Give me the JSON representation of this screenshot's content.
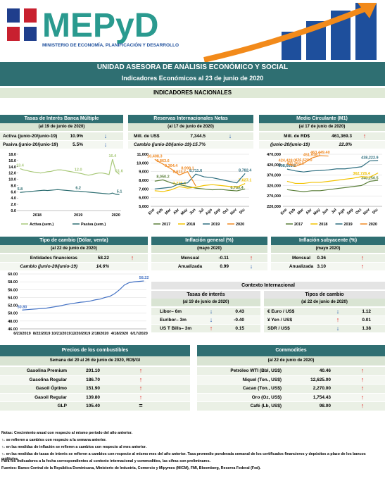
{
  "header": {
    "logo": "MEPyD",
    "ministry": "MINISTERIO DE ECONOMÍA, PLANIFICACIÓN Y DESARROLLO"
  },
  "banner": {
    "title": "UNIDAD ASESORA DE ANÁLISIS ECONÓMICO Y SOCIAL",
    "subtitle": "Indicadores Económicos al  23 de junio de 2020"
  },
  "section_title": "INDICADORES NACIONALES",
  "international_title": "Contexto Internacional",
  "panels": [
    {
      "title": "Tasas de Interés Banca Múltiple",
      "date": "(al 19 de junio de 2020)",
      "rows": [
        [
          "Activa (junio-20/junio-19)",
          "10.9%",
          "↓"
        ],
        [
          "Pasiva (junio-20/junio-19)",
          "5.5%",
          "↓"
        ]
      ]
    },
    {
      "title": "Reservas Internacionales Netas",
      "date": "(al 17 de junio de 2020)",
      "rows": [
        [
          "Mill. de US$",
          "7,344.5",
          "↓"
        ],
        [
          "Cambio (junio-20/junio-19)",
          "-15.7%"
        ]
      ]
    },
    {
      "title": "Medio Circulante (M1)",
      "date": "(al 17 de junio de 2020)",
      "rows": [
        [
          "Mill. de RD$",
          "461,369.3",
          "↑"
        ],
        [
          "(junio-20/junio-19)",
          "22.8%"
        ]
      ]
    },
    {
      "title": "Tipo de cambio (Dólar, venta)",
      "date": "(al 22 de junio de 2020)",
      "rows": [
        [
          "Entidades financieras",
          "58.22",
          "↑"
        ],
        [
          "Cambio (junio-20/junio-19)",
          "14.6%"
        ]
      ]
    },
    {
      "title": "Inflación general (%)",
      "date": "(mayo 2020)",
      "rows": [
        [
          "Mensual",
          "-0.11",
          "↑"
        ],
        [
          "Anualizada",
          "0.99",
          "↓"
        ]
      ]
    },
    {
      "title": "Inflación subyacente (%)",
      "date": "(mayo 2020)",
      "rows": [
        [
          "Mensual",
          "0.36",
          "↑"
        ],
        [
          "Anualizada",
          "3.10",
          "↑"
        ]
      ]
    },
    {
      "title": "Tasas de interés",
      "date": "(al 19 de junio de 2020)",
      "rows": [
        [
          "Libor– 6m",
          "↓",
          "0.43"
        ],
        [
          "Euribor– 3m",
          "↓",
          "-0.40"
        ],
        [
          "US T Bills– 3m",
          "↑",
          "0.15"
        ]
      ]
    },
    {
      "title": "Tipos de cambio",
      "date": "(al 22 de junio de 2020)",
      "rows": [
        [
          "€ Euro / US$",
          "↓",
          "1.12"
        ],
        [
          "¥ Yen / US$",
          "↑",
          "0.01"
        ],
        [
          "SDR / US$",
          "↓",
          "1.38"
        ]
      ]
    },
    {
      "title": "Precios de los combustibles",
      "date": "Semana del 20 al 26 de junio de 2020, RD$/Gl",
      "rows": [
        [
          "Gasolina Premium",
          "201.10",
          "↑"
        ],
        [
          "Gasolina Regular",
          "186.70",
          "↑"
        ],
        [
          "Gasoil Óptimo",
          "151.90",
          "↑"
        ],
        [
          "Gasoil Regular",
          "139.80",
          "↑"
        ],
        [
          "GLP",
          "105.40",
          "="
        ]
      ]
    },
    {
      "title": "Commodities",
      "date": "(al 22 de junio de 2020)",
      "rows": [
        [
          "Petróleo WTI (Bbl, US$)",
          "40.46",
          "↑"
        ],
        [
          "Níquel (Ton., US$)",
          "12,625.00",
          "↑"
        ],
        [
          "Cacao (Ton., US$)",
          "2,270.00",
          "↑"
        ],
        [
          "Oro (Oz, US$)",
          "1,754.43",
          "↑"
        ],
        [
          "Café (Lb, US$)",
          "98.00",
          "↑"
        ]
      ]
    }
  ],
  "chart_data": [
    {
      "type": "line",
      "grid": false,
      "rotate_x": false,
      "categories": [
        null,
        null,
        null,
        null,
        null,
        "2018",
        null,
        null,
        null,
        null,
        null,
        null,
        null,
        null,
        null,
        null,
        null,
        "2019",
        null,
        null,
        null,
        null,
        null,
        null,
        null,
        null,
        null,
        null,
        "2020",
        null
      ],
      "ylim": [
        0,
        18
      ],
      "yticks": [
        {
          "value": 0,
          "label": "0.0"
        },
        {
          "value": 2,
          "label": "2.0"
        },
        {
          "value": 4,
          "label": "4.0"
        },
        {
          "value": 6,
          "label": "6.0"
        },
        {
          "value": 8,
          "label": "8.0"
        },
        {
          "value": 10,
          "label": "10.0"
        },
        {
          "value": 12,
          "label": "12.0"
        },
        {
          "value": 14,
          "label": "14.0"
        },
        {
          "value": 16,
          "label": "16.0"
        },
        {
          "value": 18,
          "label": "18.0"
        }
      ],
      "series": [
        {
          "name": "Activa (sem.)",
          "color": "#a9c97a",
          "values": [
            13.4,
            13.0,
            12.8,
            12.5,
            12.3,
            12.2,
            12.0,
            12.2,
            12.4,
            12.5,
            12.8,
            13.0,
            13.0,
            12.8,
            12.6,
            12.4,
            12.2,
            12.0,
            11.8,
            11.5,
            11.3,
            11.5,
            11.8,
            12.0,
            12.0,
            11.8,
            11.5,
            16.4,
            12.5,
            11.6
          ],
          "value_labels": [
            "13.4",
            null,
            null,
            null,
            null,
            null,
            null,
            null,
            null,
            null,
            null,
            null,
            null,
            null,
            null,
            null,
            null,
            "12.0",
            null,
            null,
            null,
            null,
            null,
            null,
            null,
            null,
            null,
            "16.4",
            null,
            "11.6"
          ]
        },
        {
          "name": "Pasiva (sem.)",
          "color": "#2f6f72",
          "values": [
            5.8,
            5.9,
            6.0,
            6.1,
            6.2,
            6.3,
            6.4,
            6.5,
            6.4,
            6.5,
            6.6,
            6.7,
            6.6,
            6.5,
            6.4,
            6.3,
            6.2,
            6.2,
            6.1,
            6.0,
            5.9,
            5.8,
            5.7,
            5.6,
            5.5,
            5.4,
            5.3,
            5.6,
            5.2,
            5.1
          ],
          "value_labels": [
            "5.8",
            null,
            null,
            null,
            null,
            null,
            null,
            null,
            null,
            null,
            null,
            null,
            null,
            null,
            null,
            null,
            null,
            "6.2",
            null,
            null,
            null,
            null,
            null,
            null,
            null,
            null,
            null,
            null,
            null,
            "5.1"
          ]
        }
      ]
    },
    {
      "type": "line",
      "grid": true,
      "rotate_x": true,
      "categories": [
        "Ene",
        "Feb",
        "Mar",
        "Abr",
        "May",
        "Jun",
        "Jul",
        "Ago",
        "Sep",
        "Oct",
        "Nov",
        "Dic"
      ],
      "ylim": [
        5000,
        11000
      ],
      "yticks": [
        {
          "value": 5000,
          "label": "5,000"
        },
        {
          "value": 6000,
          "label": "6,000"
        },
        {
          "value": 7000,
          "label": "7,000"
        },
        {
          "value": 8000,
          "label": "8,000"
        },
        {
          "value": 9000,
          "label": "9,000"
        },
        {
          "value": 10000,
          "label": "10,000"
        },
        {
          "value": 11000,
          "label": "11,000"
        }
      ],
      "series": [
        {
          "name": "2017",
          "color": "#5b7f3a",
          "values": [
            7900,
            8050.2,
            7700,
            7500,
            7300,
            7100,
            7000,
            6900,
            6950,
            6850,
            6780.4,
            7000
          ],
          "value_labels": [
            null,
            "8,050.2",
            null,
            null,
            null,
            null,
            null,
            null,
            null,
            null,
            "6,780.4",
            null
          ]
        },
        {
          "name": "2018",
          "color": "#f2c200",
          "values": [
            6800,
            6700,
            6900,
            7275.4,
            7100,
            7200,
            7400,
            7500,
            7400,
            7300,
            7200,
            7627.1
          ],
          "value_labels": [
            null,
            null,
            null,
            "7,275.4",
            null,
            null,
            null,
            null,
            null,
            null,
            null,
            "7,627.1"
          ]
        },
        {
          "name": "2019",
          "color": "#2f6f80",
          "values": [
            7000,
            7100,
            7200,
            7600,
            7700,
            8711.6,
            8400,
            8300,
            8100,
            7900,
            7700,
            8782.4
          ],
          "value_labels": [
            null,
            null,
            null,
            null,
            null,
            "8,711.6",
            null,
            null,
            null,
            null,
            null,
            "8,782.4"
          ]
        },
        {
          "name": "2020",
          "color": "#f08a24",
          "values": [
            10408.3,
            9863.6,
            9304.4,
            8613.7,
            8998.1,
            7344.5,
            null,
            null,
            null,
            null,
            null,
            null
          ],
          "value_labels": [
            "10,408.3",
            "9,863.6",
            "9,304.4",
            "8,613.7",
            "8,998.1",
            null,
            null,
            null,
            null,
            null,
            null,
            null
          ]
        }
      ]
    },
    {
      "type": "line",
      "grid": true,
      "rotate_x": true,
      "categories": [
        "Ene",
        "Feb",
        "Mar",
        "Abr",
        "May",
        "Jun",
        "Jul",
        "Ago",
        "Sep",
        "Oct",
        "Nov",
        "Dic"
      ],
      "ylim": [
        220000,
        470000
      ],
      "yticks": [
        {
          "value": 220000,
          "label": "220,000"
        },
        {
          "value": 270000,
          "label": "270,000"
        },
        {
          "value": 320000,
          "label": "320,000"
        },
        {
          "value": 370000,
          "label": "370,000"
        },
        {
          "value": 420000,
          "label": "420,000"
        },
        {
          "value": 470000,
          "label": "470,000"
        }
      ],
      "series": [
        {
          "name": "2017",
          "color": "#5b7f3a",
          "values": [
            300000,
            295000,
            290000,
            295000,
            295000,
            300000,
            305000,
            310000,
            315000,
            320000,
            340250.5,
            345000
          ],
          "value_labels": [
            null,
            null,
            null,
            null,
            null,
            null,
            null,
            null,
            null,
            null,
            "340,250.5",
            null
          ]
        },
        {
          "name": "2018",
          "color": "#f2c200",
          "values": [
            340000,
            330000,
            330000,
            335000,
            335000,
            340000,
            345000,
            350000,
            355000,
            362726.4,
            360000,
            380000
          ],
          "value_labels": [
            null,
            null,
            null,
            null,
            null,
            null,
            null,
            null,
            null,
            "362,726.4",
            null,
            null
          ]
        },
        {
          "name": "2019",
          "color": "#2f6f80",
          "values": [
            398668.8,
            390000,
            385000,
            390000,
            392000,
            395000,
            400000,
            400000,
            405000,
            410000,
            438222.9,
            440000
          ],
          "value_labels": [
            "398,668.8",
            null,
            null,
            null,
            null,
            null,
            null,
            null,
            null,
            null,
            "438,222.9",
            null
          ]
        },
        {
          "name": "2020",
          "color": "#f08a24",
          "values": [
            424428.0,
            411363.2,
            426620.0,
            451918.2,
            463449.4,
            461369.3,
            null,
            null,
            null,
            null,
            null,
            null
          ],
          "value_labels": [
            "424,428.0",
            "411,363.2",
            "426,620.0",
            "451,918.2",
            "463,449.40",
            null,
            null,
            null,
            null,
            null,
            null,
            null
          ]
        }
      ]
    },
    {
      "type": "line",
      "grid": true,
      "rotate_x": false,
      "categories": [
        "6/23/2019",
        null,
        null,
        null,
        "8/22/2019",
        null,
        null,
        null,
        "10/21/2019",
        null,
        null,
        null,
        "12/20/2019",
        null,
        null,
        null,
        "2/18/2020",
        null,
        null,
        null,
        "4/18/2020",
        null,
        null,
        null,
        "6/17/2020",
        null
      ],
      "ylim": [
        46,
        60
      ],
      "yticks": [
        {
          "value": 46,
          "label": "46.00"
        },
        {
          "value": 48,
          "label": "48.00"
        },
        {
          "value": 50,
          "label": "50.00"
        },
        {
          "value": 52,
          "label": "52.00"
        },
        {
          "value": 54,
          "label": "54.00"
        },
        {
          "value": 56,
          "label": "56.00"
        },
        {
          "value": 58,
          "label": "58.00"
        },
        {
          "value": 60,
          "label": "60.00"
        }
      ],
      "series": [
        {
          "name": "Tipo de cambio",
          "legend": false,
          "color": "#4472c4",
          "values": [
            50.8,
            50.9,
            51.0,
            51.1,
            51.2,
            51.3,
            51.5,
            51.7,
            51.9,
            52.2,
            52.4,
            52.6,
            52.8,
            52.9,
            53.1,
            53.4,
            53.6,
            54.0,
            54.3,
            55.0,
            56.0,
            57.2,
            57.8,
            58.0,
            58.1,
            58.22
          ],
          "value_labels": [
            "50.80",
            null,
            null,
            null,
            null,
            null,
            null,
            null,
            null,
            null,
            null,
            null,
            null,
            null,
            null,
            null,
            null,
            null,
            null,
            null,
            null,
            null,
            null,
            null,
            null,
            "58.22"
          ]
        }
      ]
    }
  ],
  "notes": [
    "Notas: Crecimiento anual con respecto al mismo período del año anterior.",
    "↑↓ se refieren a cambios con respecto a la semana anterior.",
    "↑↓ en las medidas de inflación se refieren a cambios con respecto al mes anterior.",
    "↑↓ en las medidas de tasas de interés se refieren a cambios con respecto al mismo mes del año anterior. Tasa promedio ponderada semanal de los certificados financieros y depósitos a plazo de los bancos múltiples.",
    "Para los indicadores a la fecha correspondientes al contexto internacional y commodities, las cifras son preliminares.",
    "Fuentes: Banco Central de la República Dominicana, Ministerio de Industria, Comercio y Mipymes (MICM), FMI, Bloomberg, Reserva Federal (Fed)."
  ]
}
